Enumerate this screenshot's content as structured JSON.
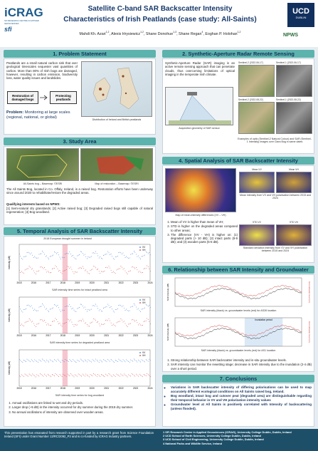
{
  "header": {
    "logo_left": "iCRAG",
    "logo_left_sub": "SFI RESEARCH CENTRE IN APPLIED GEOSCIENCES",
    "title_line1": "Satellite C-band SAR Backscatter Intensity",
    "title_line2": "Characteristics of Irish Peatlands (case study: All-Saints)",
    "authors": [
      {
        "name": "Mahdi Kh. Azari",
        "sup": "1,2"
      },
      {
        "name": "Alexis Hrysiewicz",
        "sup": "1,2"
      },
      {
        "name": "Shane Donohue",
        "sup": "1,3"
      },
      {
        "name": "Shane Regan",
        "sup": "4"
      },
      {
        "name": "Eoghan P. Holohan",
        "sup": "1,2"
      }
    ],
    "logo_right": "UCD",
    "logo_right_sub": "DUBLIN",
    "logo_npws": "NPWS"
  },
  "problem": {
    "title": "1. Problem Statement",
    "text": "Peatlands are a small natural carbon sink that over geological timescales sequester vast quantities of carbon. More than 80% of Irish bogs are damaged, however, resulting in carbon emission, biodiversity loss, water quality issues and landslides.",
    "box_left": "Restoration of damaged bogs",
    "box_right": "Protecting peatlands",
    "problem_label": "Problem:",
    "problem_text": "Monitoring at large scales (regional, national, or global)",
    "map_caption": "Distribution of Ireland and British peatlands"
  },
  "sar": {
    "title": "2. Synthetic-Aperture Radar Remote Sensing",
    "text": "Synthetic-Aperture Radar (SAR) imaging is an active remote sensing approach that can penetrate clouds, thus overcoming limitations of optical imaging in the temperate Irish climate.",
    "geometry_caption": "Acquisition geometry of SAR sensor",
    "image_labels": [
      "Sentinel-2 (2022-06-17)",
      "Sentinel-1 (2022-06-17)",
      "Sentinel-2 (2022-08-22)",
      "Sentinel-1 (2022-08-22)"
    ],
    "examples_caption": "Examples of optic (Sentinel-2 Natural Colour) and SAR (Sentinel-1 Intensity) images over Clara Bog in same dates"
  },
  "study": {
    "title": "3. Study Area",
    "caption_left": "All-Saints bog – Basemap: ©ESRI",
    "caption_right": "Map of restoration – Basemap: ©ESRI",
    "text": "The All Saints Bog, located in Co. Offaly, Ireland, is a raised bog. Restoration efforts have been underway since around 2020 to rehabilitate/restore the degraded areas.",
    "interests_label": "Qualifying interests based on NPWS:",
    "interests": "[1] Semi-natural dry grasslands; [2] Active raised bog; [3] Degraded raised bogs still capable of natural regeneration; [4] Bog woodland."
  },
  "spatial": {
    "title": "4. Spatial Analysis of SAR Backscatter Intensity",
    "map_caption": "Map of mean-intensity differences (VV – VH)",
    "image_labels": [
      "Mean VV",
      "Mean VH",
      "STD VV",
      "STD VH"
    ],
    "mean_caption": "Mean intensity from VV and VH polarisation between 2015 and 2024",
    "std_caption": "Standard deviation intensity from VV and VH polarisation between 2015 and 2024",
    "points": [
      "Mean of VV is higher than mean of VH;",
      "STD is higher on the degraded areas compared to other areas;",
      "The difference (VV - VH) is higher on: (1) degraded parts (> 10 dB); (2) intact parts (8-9 dB); and (3) wooden parts (5-6 dB)."
    ]
  },
  "temporal": {
    "title": "5. Temporal Analysis of SAR Backscatter Intensity",
    "annotation": "2018 European drought summer in Ireland",
    "y_label": "Intensity (dB)",
    "legend": [
      "VV",
      "VH"
    ],
    "years": [
      "2015",
      "2016",
      "2017",
      "2018",
      "2019",
      "2020",
      "2021",
      "2022",
      "2023",
      "2024"
    ],
    "captions": [
      "SAR intensity time series for intact peatland area",
      "SAR intensity time series for degraded peatland area",
      "SAR intensity time series for bog woodland"
    ],
    "points": [
      "Annual oscillations are linked to wet and dry periods.",
      "Larger drop (~5 dB) in the intensity occurred for dry summer during the 2018 dry summer.",
      "No annual oscillations of intensity are observed over wooden areas."
    ]
  },
  "groundwater": {
    "title": "6. Relationship between SAR Intensity and Groundwater Levels",
    "y_label": "SAR intensity (dB)",
    "y2_label": "Groundwater level (m)",
    "captions": [
      "SAR intensity (black) vs. groundwater levels (red) for AS28 location",
      "SAR intensity (black) vs. groundwater levels (red) for AS1 location"
    ],
    "inundation": "Inundation period",
    "points": [
      "Strong relationship between SAR backscatter intensity and in-situ groundwater levels.",
      "SAR intensity can monitor the rewetting stage; decrease in SAR intensity due to the inundation (2-4 dB) over a short period."
    ]
  },
  "conclusions": {
    "title": "7. Conclusions",
    "bullets": [
      "Variations in SAR backscatter intensity of differing polarisations can be used to map accurately different ecological conditions on All Saints raised bog, Ireland.",
      "Bog woodland, intact bog and cutover peat (degraded area) are distinguishable regarding their temporal behavior in VV and VH polarization intensity values",
      "Groundwater level at All Saints is positively correlated with Intensity of backscattering (unless flooded)."
    ]
  },
  "footer": {
    "funding": "This presentation has emanated from research supported in part by a research grant from Science Foundation Ireland (SFI) under Grant Number 13/RC/2092_P2 and is co-funded by iCRAG Industry partners.",
    "affiliations": [
      "1 SFI Research Centre in Applied Geosciences (iCRAG), University College Dublin, Dublin, Ireland",
      "2 UCD School of Earth Sciences, University College Dublin, Dublin, Ireland",
      "3 UCD School of Civil Engineering, University College Dublin, Dublin, Ireland",
      "4 National Parks and Wildlife Service, Ireland"
    ]
  }
}
